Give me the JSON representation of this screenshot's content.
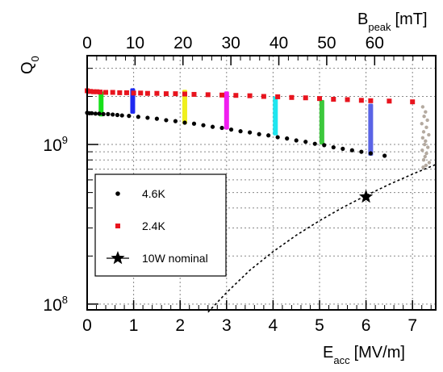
{
  "chart_data": {
    "type": "scatter",
    "x_axis": {
      "var": "E",
      "sub": "acc",
      "unit": "[MV/m]",
      "range": [
        0,
        7.5
      ],
      "ticks": [
        0,
        1,
        2,
        3,
        4,
        5,
        6,
        7
      ],
      "tick_labels": [
        "0",
        "1",
        "2",
        "3",
        "4",
        "5",
        "6",
        "7"
      ]
    },
    "x2_axis": {
      "var": "B",
      "sub": "peak",
      "unit": "[mT]",
      "mT_per_MVm": 9.7,
      "ticks": [
        0,
        10,
        20,
        30,
        40,
        50,
        60
      ],
      "tick_labels": [
        "0",
        "10",
        "20",
        "30",
        "40",
        "50",
        "60"
      ]
    },
    "y_axis": {
      "var": "Q",
      "sub": "0",
      "scale": "log",
      "range": [
        92000000.0,
        3600000000.0
      ],
      "major_ticks": [
        100000000.0,
        1000000000.0
      ],
      "major_labels": [
        {
          "base": "10",
          "exp": "8"
        },
        {
          "base": "10",
          "exp": "9"
        }
      ]
    },
    "grid": true,
    "legend": {
      "position": "left-middle",
      "entries": [
        {
          "label": "4.6K",
          "marker": "circle",
          "color": "#000000"
        },
        {
          "label": "2.4K",
          "marker": "square",
          "color": "#e8141e"
        },
        {
          "label": "10W nominal",
          "marker": "star",
          "color": "#000000"
        }
      ]
    },
    "series": [
      {
        "name": "4.6K",
        "marker": "circle",
        "color": "#000000",
        "x": [
          0.0,
          0.05,
          0.1,
          0.18,
          0.26,
          0.35,
          0.45,
          0.55,
          0.65,
          0.75,
          0.9,
          1.1,
          1.3,
          1.5,
          1.7,
          1.9,
          2.1,
          2.3,
          2.5,
          2.7,
          2.9,
          3.1,
          3.3,
          3.5,
          3.7,
          3.9,
          4.1,
          4.3,
          4.5,
          4.7,
          4.9,
          5.1,
          5.3,
          5.5,
          5.7,
          5.9,
          6.1,
          6.4
        ],
        "y": [
          1580000000.0,
          1570000000.0,
          1570000000.0,
          1560000000.0,
          1560000000.0,
          1550000000.0,
          1550000000.0,
          1540000000.0,
          1530000000.0,
          1520000000.0,
          1510000000.0,
          1490000000.0,
          1470000000.0,
          1450000000.0,
          1420000000.0,
          1400000000.0,
          1370000000.0,
          1350000000.0,
          1320000000.0,
          1290000000.0,
          1270000000.0,
          1240000000.0,
          1210000000.0,
          1190000000.0,
          1160000000.0,
          1140000000.0,
          1110000000.0,
          1090000000.0,
          1060000000.0,
          1040000000.0,
          1010000000.0,
          990000000.0,
          960000000.0,
          940000000.0,
          920000000.0,
          900000000.0,
          880000000.0,
          850000000.0
        ]
      },
      {
        "name": "2.4K",
        "marker": "square",
        "color": "#e8141e",
        "x": [
          0.0,
          0.07,
          0.14,
          0.21,
          0.28,
          0.4,
          0.55,
          0.7,
          0.85,
          1.0,
          1.15,
          1.3,
          1.5,
          1.7,
          1.9,
          2.1,
          2.3,
          2.6,
          2.9,
          3.2,
          3.5,
          3.8,
          4.1,
          4.4,
          4.7,
          5.0,
          5.3,
          5.6,
          5.9,
          6.1,
          6.5,
          7.0
        ],
        "y": [
          2170000000.0,
          2150000000.0,
          2140000000.0,
          2140000000.0,
          2130000000.0,
          2120000000.0,
          2120000000.0,
          2110000000.0,
          2110000000.0,
          2100000000.0,
          2100000000.0,
          2090000000.0,
          2090000000.0,
          2080000000.0,
          2080000000.0,
          2070000000.0,
          2060000000.0,
          2050000000.0,
          2040000000.0,
          2030000000.0,
          2020000000.0,
          2000000000.0,
          1990000000.0,
          1970000000.0,
          1960000000.0,
          1940000000.0,
          1920000000.0,
          1910000000.0,
          1890000000.0,
          1880000000.0,
          1870000000.0,
          1850000000.0
        ]
      },
      {
        "name": "10W nominal",
        "marker": "star",
        "color": "#000000",
        "x": [
          6.0
        ],
        "y": [
          470000000.0
        ]
      }
    ],
    "dotted_curve": {
      "style": "dashed",
      "color": "#000000",
      "x": [
        2.6,
        3.0,
        3.5,
        4.0,
        4.5,
        5.0,
        5.5,
        6.0,
        6.5,
        7.0,
        7.5
      ],
      "y": [
        89000000.0,
        118000000.0,
        163000000.0,
        213000000.0,
        270000000.0,
        333000000.0,
        403000000.0,
        479000000.0,
        562000000.0,
        652000000.0,
        749000000.0
      ]
    },
    "vertical_bands": [
      {
        "x": 0.3,
        "y_range": [
          1500000000.0,
          2150000000.0
        ],
        "color": "#17e01a"
      },
      {
        "x": 0.98,
        "y_range": [
          1560000000.0,
          2250000000.0
        ],
        "color": "#1e28f0"
      },
      {
        "x": 2.1,
        "y_range": [
          1340000000.0,
          2200000000.0
        ],
        "color": "#f0f01e"
      },
      {
        "x": 3.0,
        "y_range": [
          1240000000.0,
          2150000000.0
        ],
        "color": "#f01ef0"
      },
      {
        "x": 4.05,
        "y_range": [
          1140000000.0,
          2000000000.0
        ],
        "color": "#1ee6f0"
      },
      {
        "x": 5.05,
        "y_range": [
          1000000000.0,
          1900000000.0
        ],
        "color": "#3cc83c"
      },
      {
        "x": 6.1,
        "y_range": [
          850000000.0,
          1800000000.0
        ],
        "color": "#5a64e6"
      }
    ],
    "grey_points": {
      "color": "#b4aaa0",
      "x": [
        7.22,
        7.28,
        7.25,
        7.32,
        7.2,
        7.3,
        7.24,
        7.35,
        7.22,
        7.28,
        7.26,
        7.33,
        7.21,
        7.3,
        7.27,
        7.24,
        7.36,
        7.29,
        7.23
      ],
      "y": [
        1720000000.0,
        1600000000.0,
        1500000000.0,
        1420000000.0,
        1350000000.0,
        1280000000.0,
        1200000000.0,
        1150000000.0,
        1100000000.0,
        1050000000.0,
        1000000000.0,
        960000000.0,
        920000000.0,
        880000000.0,
        840000000.0,
        800000000.0,
        770000000.0,
        740000000.0,
        720000000.0
      ]
    }
  }
}
